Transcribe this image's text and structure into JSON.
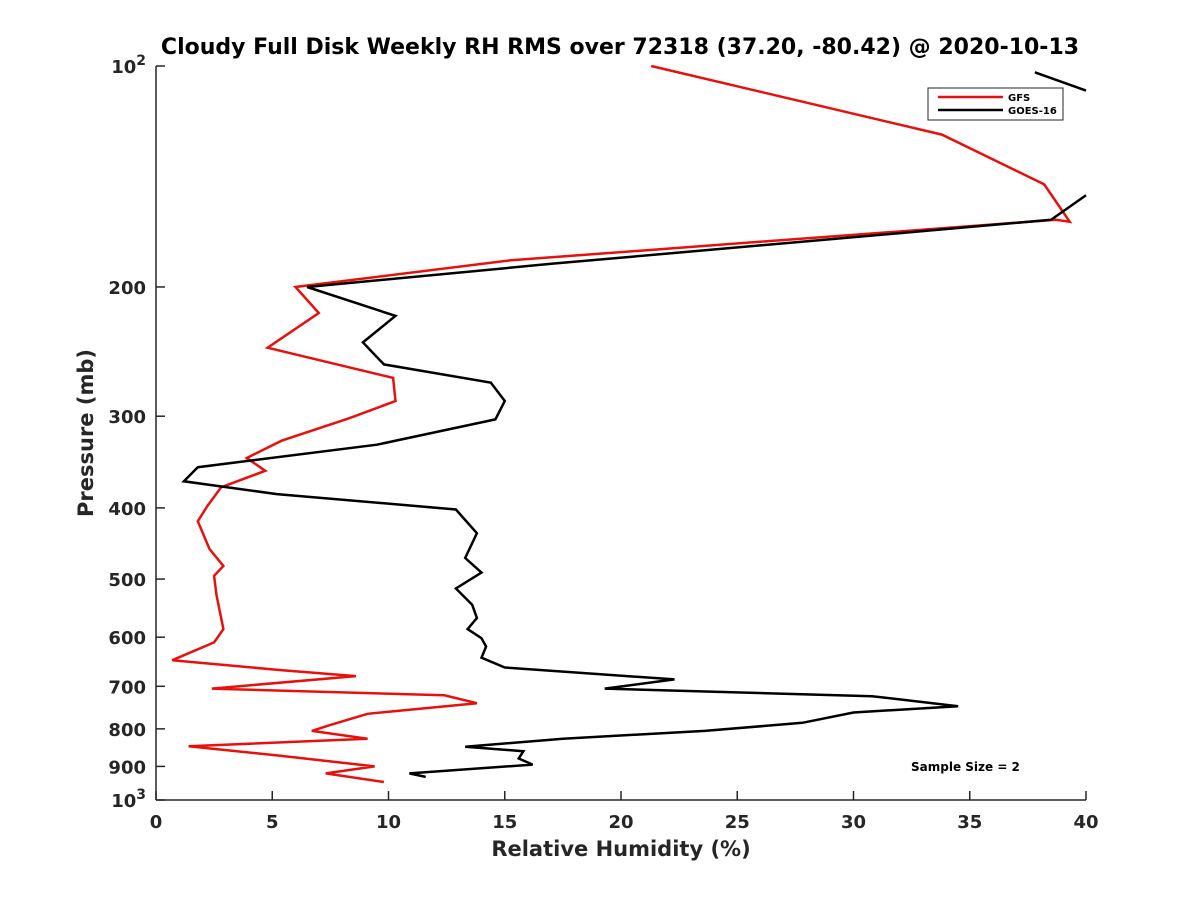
{
  "chart_data": {
    "type": "line",
    "title": "Cloudy Full Disk Weekly RH RMS over 72318 (37.20, -80.42) @ 2020-10-13",
    "xlabel": "Relative Humidity (%)",
    "ylabel": "Pressure (mb)",
    "xlim": [
      0,
      40
    ],
    "ylim": [
      100,
      1000
    ],
    "yscale": "log",
    "y_reversed": true,
    "grid": false,
    "x_ticks": [
      0,
      5,
      10,
      15,
      20,
      25,
      30,
      35,
      40
    ],
    "x_tick_labels": [
      "0",
      "5",
      "10",
      "15",
      "20",
      "25",
      "30",
      "35",
      "40"
    ],
    "y_ticks": [
      {
        "value": 100,
        "base": "10",
        "exp": "2"
      },
      {
        "value": 200,
        "label": "200"
      },
      {
        "value": 300,
        "label": "300"
      },
      {
        "value": 400,
        "label": "400"
      },
      {
        "value": 500,
        "label": "500"
      },
      {
        "value": 600,
        "label": "600"
      },
      {
        "value": 700,
        "label": "700"
      },
      {
        "value": 800,
        "label": "800"
      },
      {
        "value": 900,
        "label": "900"
      },
      {
        "value": 1000,
        "base": "10",
        "exp": "3"
      }
    ],
    "legend_position": "top-right",
    "annotation": "Sample Size = 2",
    "series": [
      {
        "name": "GFS",
        "color": "#e8100c",
        "points": [
          [
            21.3,
            100
          ],
          [
            33.8,
            124
          ],
          [
            38.2,
            145
          ],
          [
            39.3,
            163
          ],
          [
            38.7,
            162
          ],
          [
            15.2,
            184
          ],
          [
            6.0,
            200
          ],
          [
            7.0,
            217
          ],
          [
            4.8,
            242
          ],
          [
            10.2,
            266
          ],
          [
            10.3,
            286
          ],
          [
            8.3,
            302
          ],
          [
            5.4,
            324
          ],
          [
            3.9,
            342
          ],
          [
            4.7,
            356
          ],
          [
            2.8,
            375
          ],
          [
            2.2,
            398
          ],
          [
            1.8,
            417
          ],
          [
            2.3,
            455
          ],
          [
            2.9,
            480
          ],
          [
            2.5,
            495
          ],
          [
            2.6,
            525
          ],
          [
            2.9,
            585
          ],
          [
            2.5,
            610
          ],
          [
            0.7,
            645
          ],
          [
            5.3,
            665
          ],
          [
            8.6,
            678
          ],
          [
            2.4,
            705
          ],
          [
            12.4,
            720
          ],
          [
            13.8,
            738
          ],
          [
            9.1,
            763
          ],
          [
            7.5,
            790
          ],
          [
            6.7,
            805
          ],
          [
            9.1,
            825
          ],
          [
            1.4,
            845
          ],
          [
            5.3,
            870
          ],
          [
            9.4,
            900
          ],
          [
            7.3,
            920
          ],
          [
            9.8,
            945
          ]
        ]
      },
      {
        "name": "GOES-16",
        "color": "#000000",
        "points": [
          [
            38.5,
            162
          ],
          [
            17.0,
            186
          ],
          [
            6.5,
            200
          ],
          [
            10.3,
            219
          ],
          [
            8.9,
            238
          ],
          [
            9.8,
            255
          ],
          [
            14.4,
            270
          ],
          [
            15.0,
            286
          ],
          [
            14.6,
            303
          ],
          [
            9.5,
            328
          ],
          [
            1.8,
            352
          ],
          [
            1.2,
            368
          ],
          [
            5.2,
            383
          ],
          [
            12.9,
            402
          ],
          [
            13.8,
            433
          ],
          [
            13.3,
            468
          ],
          [
            14.0,
            490
          ],
          [
            12.9,
            515
          ],
          [
            13.6,
            542
          ],
          [
            13.8,
            565
          ],
          [
            13.4,
            585
          ],
          [
            14.0,
            602
          ],
          [
            14.2,
            618
          ],
          [
            14.0,
            640
          ],
          [
            15.0,
            660
          ],
          [
            22.3,
            685
          ],
          [
            19.3,
            705
          ],
          [
            30.8,
            722
          ],
          [
            34.5,
            745
          ],
          [
            30.0,
            760
          ],
          [
            27.8,
            785
          ],
          [
            23.6,
            805
          ],
          [
            17.5,
            825
          ],
          [
            13.3,
            846
          ],
          [
            15.8,
            858
          ],
          [
            15.6,
            878
          ],
          [
            16.2,
            895
          ],
          [
            10.9,
            920
          ],
          [
            11.6,
            930
          ]
        ]
      }
    ]
  }
}
